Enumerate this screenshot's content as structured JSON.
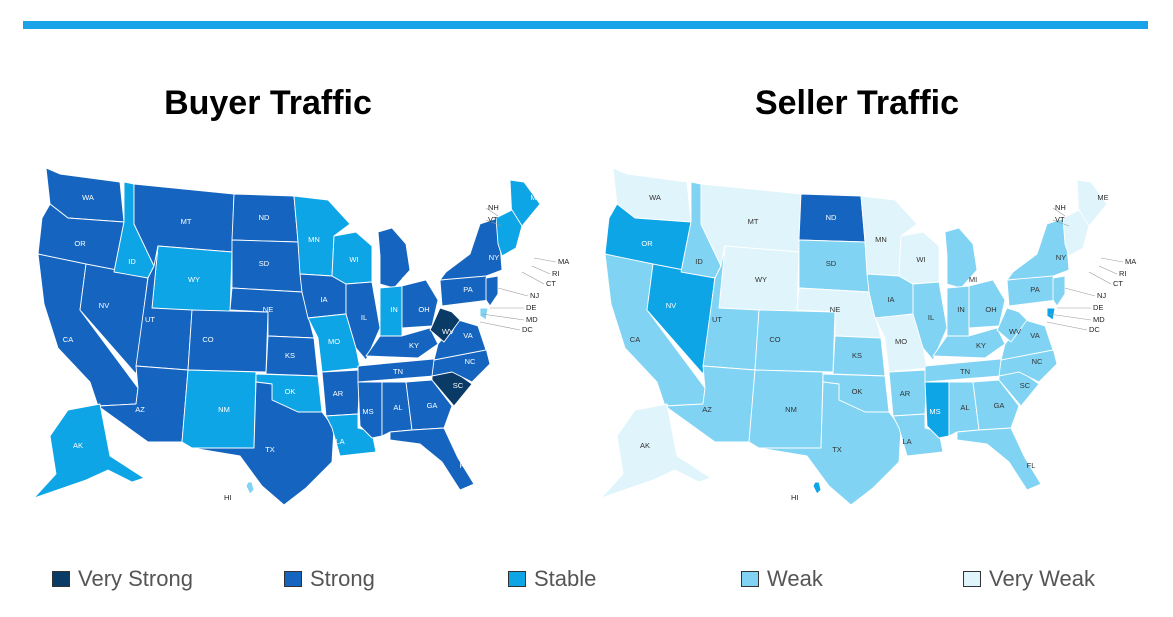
{
  "titles": {
    "buyer": "Buyer Traffic",
    "seller": "Seller Traffic"
  },
  "colors": {
    "accent_bar": "#1aa3e8",
    "very_strong": "#0a3a66",
    "strong": "#1565c0",
    "stable": "#0da5e6",
    "weak": "#80d3f3",
    "very_weak": "#e0f4fb"
  },
  "legend": [
    {
      "key": "very_strong",
      "label": "Very Strong"
    },
    {
      "key": "strong",
      "label": "Strong"
    },
    {
      "key": "stable",
      "label": "Stable"
    },
    {
      "key": "weak",
      "label": "Weak"
    },
    {
      "key": "very_weak",
      "label": "Very Weak"
    }
  ],
  "small_state_labels": [
    "NH",
    "VT",
    "MA",
    "RI",
    "CT",
    "NJ",
    "DE",
    "MD",
    "DC",
    "HI"
  ],
  "buyer_traffic": {
    "WA": "strong",
    "OR": "strong",
    "CA": "strong",
    "NV": "strong",
    "ID": "stable",
    "MT": "strong",
    "WY": "stable",
    "UT": "strong",
    "AZ": "strong",
    "CO": "strong",
    "NM": "stable",
    "ND": "strong",
    "SD": "strong",
    "NE": "strong",
    "KS": "strong",
    "OK": "stable",
    "TX": "strong",
    "MN": "stable",
    "IA": "strong",
    "MO": "stable",
    "AR": "strong",
    "LA": "stable",
    "WI": "stable",
    "IL": "strong",
    "MI": "strong",
    "IN": "stable",
    "OH": "strong",
    "KY": "strong",
    "TN": "strong",
    "MS": "strong",
    "AL": "strong",
    "GA": "strong",
    "FL": "strong",
    "SC": "very_strong",
    "NC": "strong",
    "VA": "strong",
    "WV": "very_strong",
    "PA": "strong",
    "NY": "strong",
    "ME": "stable",
    "AK": "stable",
    "HI": "weak"
  },
  "seller_traffic": {
    "WA": "very_weak",
    "OR": "stable",
    "CA": "weak",
    "NV": "stable",
    "ID": "weak",
    "MT": "very_weak",
    "WY": "very_weak",
    "UT": "weak",
    "AZ": "weak",
    "CO": "weak",
    "NM": "weak",
    "ND": "strong",
    "SD": "weak",
    "NE": "very_weak",
    "KS": "weak",
    "OK": "weak",
    "TX": "weak",
    "MN": "very_weak",
    "IA": "weak",
    "MO": "very_weak",
    "AR": "weak",
    "LA": "weak",
    "WI": "very_weak",
    "IL": "weak",
    "MI": "weak",
    "IN": "weak",
    "OH": "weak",
    "KY": "weak",
    "TN": "weak",
    "MS": "stable",
    "AL": "weak",
    "GA": "weak",
    "FL": "weak",
    "SC": "weak",
    "NC": "weak",
    "VA": "weak",
    "WV": "weak",
    "PA": "weak",
    "NY": "weak",
    "ME": "very_weak",
    "AK": "very_weak",
    "HI": "stable"
  }
}
